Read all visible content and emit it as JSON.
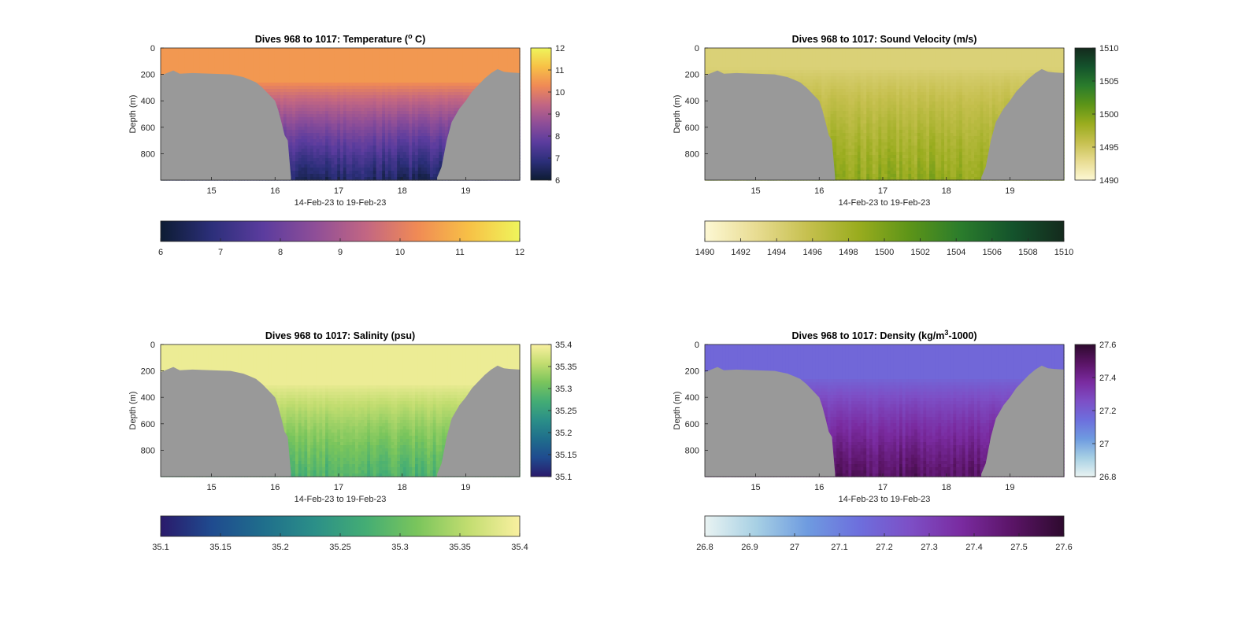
{
  "figure": {
    "date_range_label": "14-Feb-23 to 19-Feb-23",
    "bathymetry_color": "#999999"
  },
  "chart_data": [
    {
      "type": "heatmap",
      "title": "Dives 968 to 1017: Temperature (",
      "title_sup": "o",
      "title_post": " C)",
      "xlabel": "14-Feb-23 to 19-Feb-23",
      "ylabel": "Depth (m)",
      "xlim": [
        14.2,
        19.85
      ],
      "ylim": [
        0,
        1000
      ],
      "y_reversed": true,
      "xticks": [
        15,
        16,
        17,
        18,
        19
      ],
      "yticks": [
        0,
        200,
        400,
        600,
        800
      ],
      "colorbar": {
        "range": [
          6,
          12
        ],
        "ticks": [
          6,
          7,
          8,
          9,
          10,
          11,
          12
        ],
        "stops": [
          "#0d1c33",
          "#2c2f7a",
          "#5b3c9e",
          "#8e4e98",
          "#c26683",
          "#f08a55",
          "#f7c046",
          "#eff55b"
        ]
      },
      "field": {
        "surface": 10.5,
        "deep": 6.5,
        "surface_layer_depth": 250
      }
    },
    {
      "type": "heatmap",
      "title": "Dives 968 to 1017: Sound Velocity (m/s)",
      "title_sup": "",
      "title_post": "",
      "xlabel": "14-Feb-23 to 19-Feb-23",
      "ylabel": "Depth (m)",
      "xlim": [
        14.2,
        19.85
      ],
      "ylim": [
        0,
        1000
      ],
      "y_reversed": true,
      "xticks": [
        15,
        16,
        17,
        18,
        19
      ],
      "yticks": [
        0,
        200,
        400,
        600,
        800
      ],
      "colorbar": {
        "range": [
          1490,
          1510
        ],
        "ticks": [
          1490,
          1495,
          1500,
          1505,
          1510
        ],
        "ticks_horizontal": [
          1490,
          1492,
          1494,
          1496,
          1498,
          1500,
          1502,
          1504,
          1506,
          1508,
          1510
        ],
        "stops": [
          "#fdf8d4",
          "#e8dc92",
          "#c6c04f",
          "#99ac1e",
          "#5c9418",
          "#2a7c2c",
          "#14532c",
          "#142a1d"
        ]
      },
      "field": {
        "surface": 1494,
        "deep": 1499,
        "surface_layer_depth": 150
      }
    },
    {
      "type": "heatmap",
      "title": "Dives 968 to 1017: Salinity (psu)",
      "title_sup": "",
      "title_post": "",
      "xlabel": "14-Feb-23 to 19-Feb-23",
      "ylabel": "Depth (m)",
      "xlim": [
        14.2,
        19.85
      ],
      "ylim": [
        0,
        1000
      ],
      "y_reversed": true,
      "xticks": [
        15,
        16,
        17,
        18,
        19
      ],
      "yticks": [
        0,
        200,
        400,
        600,
        800
      ],
      "colorbar": {
        "range": [
          35.1,
          35.4
        ],
        "ticks": [
          "35.1",
          "35.15",
          "35.2",
          "35.25",
          "35.3",
          "35.35",
          "35.4"
        ],
        "stops": [
          "#2a1a6b",
          "#1f4b8f",
          "#1f6e8c",
          "#2b8f88",
          "#44ad74",
          "#7ac55c",
          "#c2dd70",
          "#f9f0a0"
        ]
      },
      "field": {
        "surface": 35.39,
        "deep": 35.28,
        "surface_layer_depth": 300
      }
    },
    {
      "type": "heatmap",
      "title": "Dives 968 to 1017: Density (kg/m",
      "title_sup": "3",
      "title_post": "-1000)",
      "xlabel": "14-Feb-23 to 19-Feb-23",
      "ylabel": "Depth (m)",
      "xlim": [
        14.2,
        19.85
      ],
      "ylim": [
        0,
        1000
      ],
      "y_reversed": true,
      "xticks": [
        15,
        16,
        17,
        18,
        19
      ],
      "yticks": [
        0,
        200,
        400,
        600,
        800
      ],
      "colorbar": {
        "range": [
          26.8,
          27.6
        ],
        "ticks": [
          "26.8",
          "27",
          "27.2",
          "27.4",
          "27.6"
        ],
        "ticks_horizontal": [
          "26.8",
          "26.9",
          "27",
          "27.1",
          "27.2",
          "27.3",
          "27.4",
          "27.5",
          "27.6"
        ],
        "stops": [
          "#e9f3f2",
          "#a7d0e4",
          "#6e9be0",
          "#6d6fdd",
          "#7d4fc6",
          "#7a2ba0",
          "#5a1466",
          "#2e0a2e"
        ]
      },
      "field": {
        "surface": 27.17,
        "deep": 27.5,
        "surface_layer_depth": 250
      }
    }
  ]
}
